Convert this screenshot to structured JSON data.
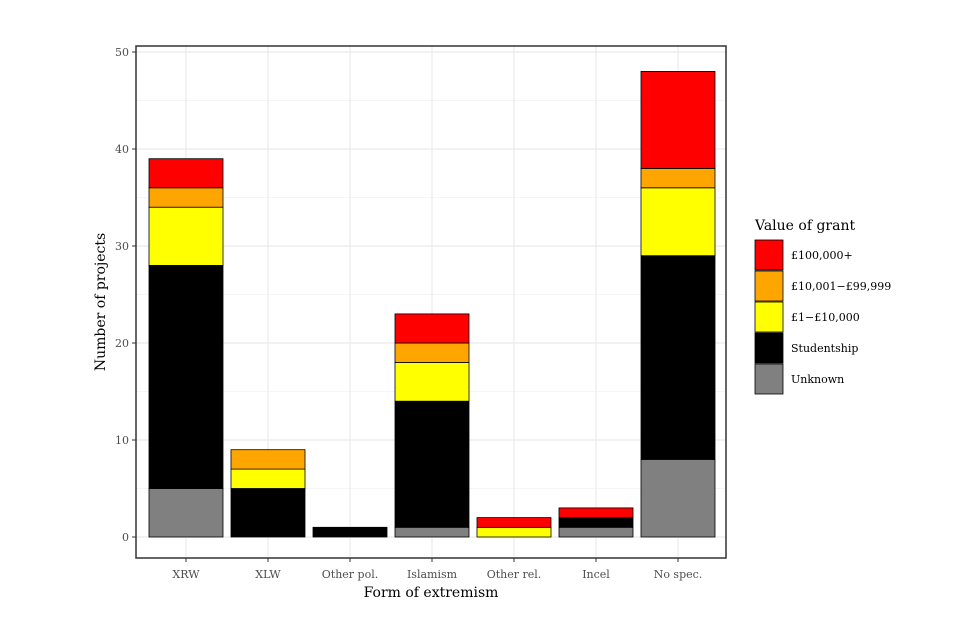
{
  "chart_data": {
    "type": "bar",
    "stacked": true,
    "title": "",
    "xlabel": "Form of extremism",
    "ylabel": "Number of projects",
    "ylim": [
      0,
      50
    ],
    "yticks": [
      0,
      10,
      20,
      30,
      40,
      50
    ],
    "grid": true,
    "legend_position": "right",
    "legend_title": "Value of grant",
    "categories": [
      "XRW",
      "XLW",
      "Other pol.",
      "Islamism",
      "Other rel.",
      "Incel",
      "No spec."
    ],
    "series": [
      {
        "name": "Unknown",
        "color": "#808080",
        "values": [
          5,
          0,
          0,
          1,
          0,
          1,
          8
        ]
      },
      {
        "name": "Studentship",
        "color": "#000000",
        "values": [
          23,
          5,
          1,
          13,
          0,
          1,
          21
        ]
      },
      {
        "name": "£1−£10,000",
        "color": "#ffff00",
        "values": [
          6,
          2,
          0,
          4,
          1,
          0,
          7
        ]
      },
      {
        "name": "£10,001−£99,999",
        "color": "#ffa500",
        "values": [
          2,
          2,
          0,
          2,
          0,
          0,
          2
        ]
      },
      {
        "name": "£100,000+",
        "color": "#ff0000",
        "values": [
          3,
          0,
          0,
          3,
          1,
          1,
          10
        ]
      }
    ],
    "legend_order": [
      "£100,000+",
      "£10,001−£99,999",
      "£1−£10,000",
      "Studentship",
      "Unknown"
    ]
  }
}
